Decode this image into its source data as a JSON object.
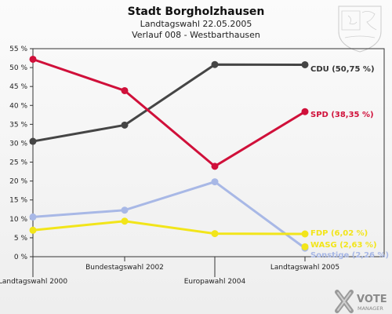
{
  "chart_data": {
    "type": "line",
    "title": "Stadt Borgholzhausen",
    "subtitle1": "Landtagswahl 22.05.2005",
    "subtitle2": "Verlauf 008 - Westbarthausen",
    "x": [
      "Landtagswahl 2000",
      "Bundestagswahl 2002",
      "Europawahl 2004",
      "Landtagswahl 2005"
    ],
    "ylim": [
      0,
      55
    ],
    "yticks": [
      0,
      5,
      10,
      15,
      20,
      25,
      30,
      35,
      40,
      45,
      50,
      55
    ],
    "ytick_labels": [
      "0 %",
      "5 %",
      "10 %",
      "15 %",
      "20 %",
      "25 %",
      "30 %",
      "35 %",
      "40 %",
      "45 %",
      "50 %",
      "55 %"
    ],
    "grid": false,
    "series": [
      {
        "name": "CDU",
        "values": [
          30.5,
          34.8,
          50.8,
          50.75
        ],
        "color": "#454545",
        "end_label": "CDU (50,75 %)"
      },
      {
        "name": "SPD",
        "values": [
          52.2,
          43.9,
          23.9,
          38.35
        ],
        "color": "#d0103a",
        "end_label": "SPD (38,35 %)"
      },
      {
        "name": "Sonstige",
        "values": [
          10.5,
          12.3,
          19.8,
          2.26
        ],
        "color": "#a8b8e6",
        "end_label": "Sonstige (2,26 %)"
      },
      {
        "name": "FDP",
        "values": [
          7.0,
          9.4,
          6.1,
          6.02
        ],
        "color": "#f2e51a",
        "end_label": "FDP (6,02 %)"
      },
      {
        "name": "WASG",
        "values": [
          null,
          null,
          null,
          2.63
        ],
        "color": "#f2e51a",
        "end_label": "WASG (2,63 %)"
      }
    ]
  },
  "branding": {
    "logo_text": "VOTE",
    "logo_subtext": "MANAGER",
    "emblem": "coat-of-arms-icon"
  }
}
